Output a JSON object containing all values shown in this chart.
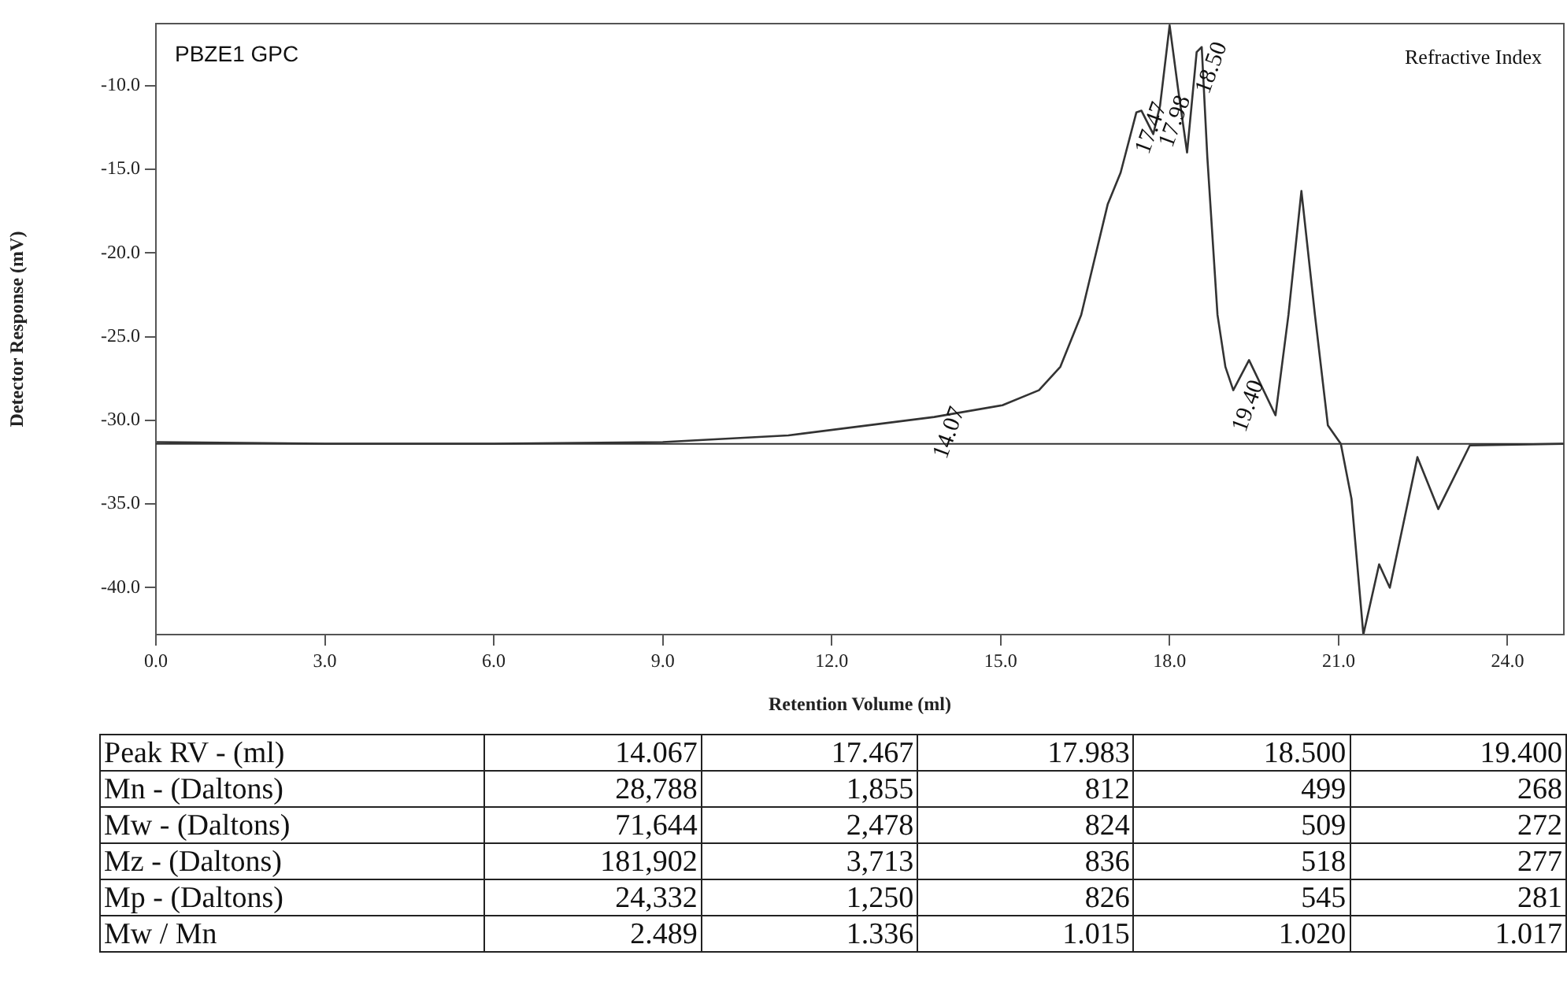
{
  "chart_data": {
    "type": "line",
    "xlabel": "Retention Volume (ml)",
    "ylabel": "Detector Response (mV)",
    "x": [
      0,
      3,
      6,
      9,
      11.23,
      13.82,
      15.03,
      15.68,
      16.06,
      16.43,
      16.9,
      17.13,
      17.41,
      17.5,
      17.71,
      17.83,
      18.0,
      18.15,
      18.31,
      18.48,
      18.57,
      18.67,
      18.85,
      18.99,
      19.13,
      19.41,
      19.88,
      20.11,
      20.34,
      20.58,
      20.81,
      21.04,
      21.23,
      21.44,
      21.72,
      21.91,
      22.4,
      22.77,
      23.33,
      25
    ],
    "series": [
      {
        "color": "#333333",
        "values": [
          -31.3,
          -31.4,
          -31.4,
          -31.3,
          -30.9,
          -29.8,
          -29.1,
          -28.2,
          -26.8,
          -23.7,
          -17.1,
          -15.2,
          -11.6,
          -11.5,
          -12.9,
          -11.2,
          -6.4,
          -10.2,
          -14.0,
          -8.0,
          -7.7,
          -14.3,
          -23.7,
          -26.8,
          -28.2,
          -26.4,
          -29.7,
          -23.7,
          -16.3,
          -23.7,
          -30.3,
          -31.4,
          -34.7,
          -42.8,
          -38.6,
          -40.0,
          -32.2,
          -35.3,
          -31.5,
          -31.4
        ]
      }
    ],
    "xlim": [
      0,
      25
    ],
    "ylim": [
      -42.8,
      -6.3
    ],
    "xticks": [
      {
        "value": 0,
        "label": "0.0"
      },
      {
        "value": 3,
        "label": "3.0"
      },
      {
        "value": 6,
        "label": "6.0"
      },
      {
        "value": 9,
        "label": "9.0"
      },
      {
        "value": 12,
        "label": "12.0"
      },
      {
        "value": 15,
        "label": "15.0"
      },
      {
        "value": 18,
        "label": "18.0"
      },
      {
        "value": 21,
        "label": "21.0"
      },
      {
        "value": 24,
        "label": "24.0"
      }
    ],
    "yticks": [
      {
        "value": -10,
        "label": "-10.0"
      },
      {
        "value": -15,
        "label": "-15.0"
      },
      {
        "value": -20,
        "label": "-20.0"
      },
      {
        "value": -25,
        "label": "-25.0"
      },
      {
        "value": -30,
        "label": "-30.0"
      },
      {
        "value": -35,
        "label": "-35.0"
      },
      {
        "value": -40,
        "label": "-40.0"
      }
    ],
    "ref_lines": [
      {
        "axis": "y",
        "value": -31.4,
        "color": "#333333"
      }
    ],
    "grid": false,
    "legend": false,
    "marker": "none",
    "line_style": "solid",
    "annotations": [
      "PBZE1 GPC",
      "Refractive Index",
      {
        "text": "14.07",
        "x": 13.82,
        "y": -29.8
      },
      {
        "text": "17.47",
        "x": 17.41,
        "y": -11.6
      },
      {
        "text": "17.98",
        "x": 17.83,
        "y": -11.2
      },
      {
        "text": "18.50",
        "x": 18.48,
        "y": -8.0
      },
      {
        "text": "19.40",
        "x": 19.13,
        "y": -28.2
      },
      "Peak RV - (ml)",
      "14.067",
      "17.467",
      "17.983",
      "18.500",
      "19.400",
      "Mn - (Daltons)",
      "28,788",
      "1,855",
      "812",
      "499",
      "268",
      "Mw - (Daltons)",
      "71,644",
      "2,478",
      "824",
      "509",
      "272",
      "Mz - (Daltons)",
      "181,902",
      "3,713",
      "836",
      "518",
      "277",
      "Mp - (Daltons)",
      "24,332",
      "1,250",
      "826",
      "545",
      "281",
      "Mw / Mn",
      "2.489",
      "1.336",
      "1.015",
      "1.020",
      "1.017"
    ]
  }
}
